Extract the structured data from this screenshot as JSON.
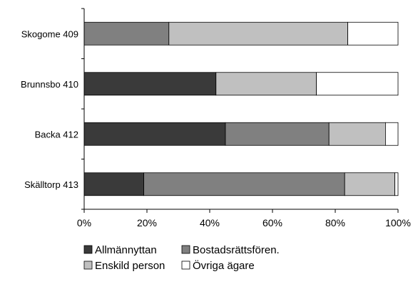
{
  "chart_data": {
    "type": "bar",
    "orientation": "horizontal",
    "stacked": true,
    "percent_stacked": true,
    "categories": [
      "Skogome 409",
      "Brunnsbo 410",
      "Backa 412",
      "Skälltorp 413"
    ],
    "series": [
      {
        "name": "Allmännyttan",
        "values": [
          0,
          42,
          45,
          19
        ]
      },
      {
        "name": "Bostadsrättsfören.",
        "values": [
          27,
          0,
          33,
          64
        ]
      },
      {
        "name": "Enskild person",
        "values": [
          57,
          32,
          18,
          16
        ]
      },
      {
        "name": "Övriga ägare",
        "values": [
          16,
          26,
          4,
          1
        ]
      }
    ],
    "colors": [
      "#3a3a3a",
      "#808080",
      "#c0c0c0",
      "#ffffff"
    ],
    "xlim": [
      0,
      100
    ],
    "x_ticks": [
      "0%",
      "20%",
      "40%",
      "60%",
      "80%",
      "100%"
    ],
    "grid": false,
    "legend_position": "bottom",
    "title": "",
    "xlabel": "",
    "ylabel": ""
  }
}
